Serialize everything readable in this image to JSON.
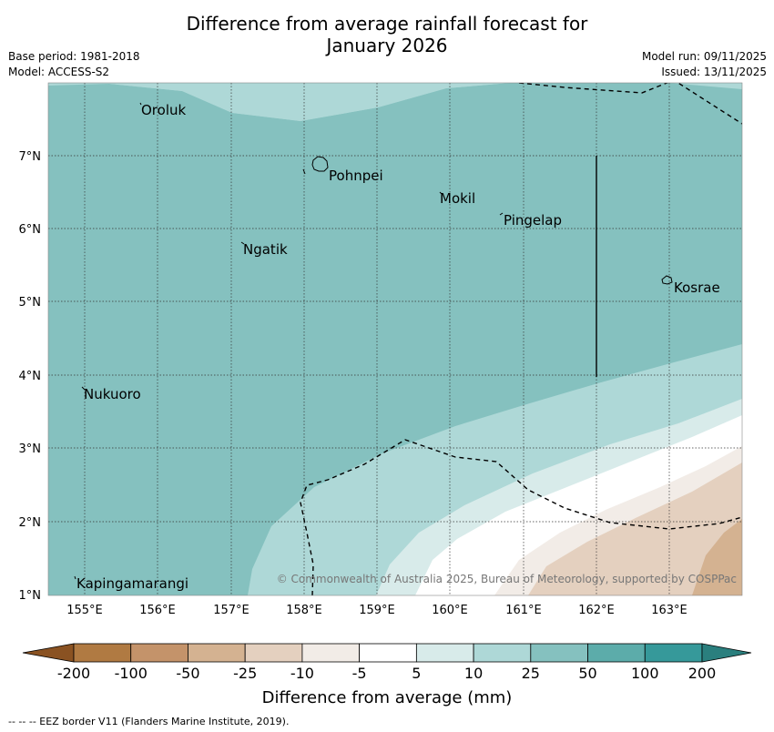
{
  "header": {
    "title_line1": "Difference from average rainfall forecast for",
    "title_line2": "January 2026",
    "base_period": "Base period: 1981-2018",
    "model": "Model: ACCESS-S2",
    "model_run": "Model run: 09/11/2025",
    "issued": "Issued: 13/11/2025"
  },
  "map": {
    "lon_ticks": [
      "155°E",
      "156°E",
      "157°E",
      "158°E",
      "159°E",
      "160°E",
      "161°E",
      "162°E",
      "163°E"
    ],
    "lat_ticks": [
      "7°N",
      "6°N",
      "5°N",
      "4°N",
      "3°N",
      "2°N",
      "1°N"
    ],
    "places": [
      {
        "name": "Oroluk"
      },
      {
        "name": "Pohnpei"
      },
      {
        "name": "Mokil"
      },
      {
        "name": "Pingelap"
      },
      {
        "name": "Ngatik"
      },
      {
        "name": "Kosrae"
      },
      {
        "name": "Nukuoro"
      },
      {
        "name": "Kapingamarangi"
      }
    ],
    "copyright": "© Commonwealth of Australia 2025, Bureau of Meteorology, supported by COSPPac"
  },
  "colorbar": {
    "ticks": [
      "-200",
      "-100",
      "-50",
      "-25",
      "-10",
      "-5",
      "5",
      "10",
      "25",
      "50",
      "100",
      "200"
    ],
    "colors": [
      "#8a5222",
      "#b07a42",
      "#c4936a",
      "#d4b291",
      "#e4d0bf",
      "#f2ece7",
      "#ffffff",
      "#d8ebea",
      "#aed8d7",
      "#85c1bf",
      "#5cacaa",
      "#36999a",
      "#2a7f7e"
    ],
    "label": "Difference from average (mm)"
  },
  "footer": {
    "eez_note": "--  --  -- EEZ border V11 (Flanders Marine Institute, 2019)."
  }
}
